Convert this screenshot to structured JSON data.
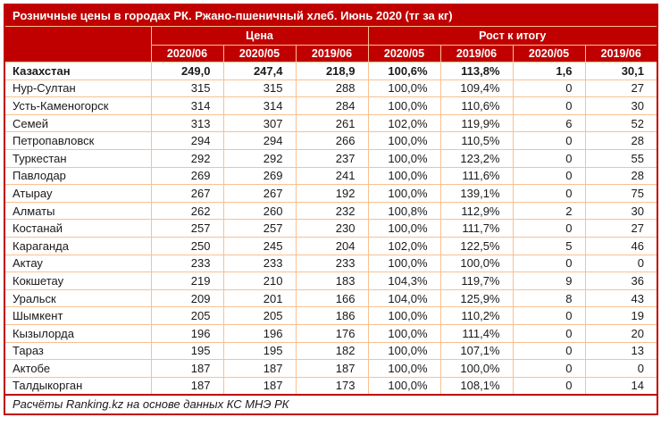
{
  "colors": {
    "header_bg": "#C00000",
    "header_text": "#FFFFFF",
    "grid_border": "#FAC090",
    "body_text": "#1A1A1A",
    "page_bg": "#FFFFFF"
  },
  "chart_data": {
    "type": "table",
    "title": "Розничные цены в городах РК. Ржано-пшеничный хлеб. Июнь 2020 (тг за кг)",
    "column_groups": [
      {
        "label": "Цена",
        "span": 3
      },
      {
        "label": "Рост к итогу",
        "span": 4
      }
    ],
    "columns": [
      "2020/06",
      "2020/05",
      "2019/06",
      "2020/05",
      "2019/06",
      "2020/05",
      "2019/06"
    ],
    "rows": [
      {
        "city": "Казахстан",
        "bold": true,
        "values": [
          "249,0",
          "247,4",
          "218,9",
          "100,6%",
          "113,8%",
          "1,6",
          "30,1"
        ]
      },
      {
        "city": "Нур-Султан",
        "bold": false,
        "values": [
          "315",
          "315",
          "288",
          "100,0%",
          "109,4%",
          "0",
          "27"
        ]
      },
      {
        "city": "Усть-Каменогорск",
        "bold": false,
        "values": [
          "314",
          "314",
          "284",
          "100,0%",
          "110,6%",
          "0",
          "30"
        ]
      },
      {
        "city": "Семей",
        "bold": false,
        "values": [
          "313",
          "307",
          "261",
          "102,0%",
          "119,9%",
          "6",
          "52"
        ]
      },
      {
        "city": "Петропавловск",
        "bold": false,
        "values": [
          "294",
          "294",
          "266",
          "100,0%",
          "110,5%",
          "0",
          "28"
        ]
      },
      {
        "city": "Туркестан",
        "bold": false,
        "values": [
          "292",
          "292",
          "237",
          "100,0%",
          "123,2%",
          "0",
          "55"
        ]
      },
      {
        "city": "Павлодар",
        "bold": false,
        "values": [
          "269",
          "269",
          "241",
          "100,0%",
          "111,6%",
          "0",
          "28"
        ]
      },
      {
        "city": "Атырау",
        "bold": false,
        "values": [
          "267",
          "267",
          "192",
          "100,0%",
          "139,1%",
          "0",
          "75"
        ]
      },
      {
        "city": "Алматы",
        "bold": false,
        "values": [
          "262",
          "260",
          "232",
          "100,8%",
          "112,9%",
          "2",
          "30"
        ]
      },
      {
        "city": "Костанай",
        "bold": false,
        "values": [
          "257",
          "257",
          "230",
          "100,0%",
          "111,7%",
          "0",
          "27"
        ]
      },
      {
        "city": "Караганда",
        "bold": false,
        "values": [
          "250",
          "245",
          "204",
          "102,0%",
          "122,5%",
          "5",
          "46"
        ]
      },
      {
        "city": "Актау",
        "bold": false,
        "values": [
          "233",
          "233",
          "233",
          "100,0%",
          "100,0%",
          "0",
          "0"
        ]
      },
      {
        "city": "Кокшетау",
        "bold": false,
        "values": [
          "219",
          "210",
          "183",
          "104,3%",
          "119,7%",
          "9",
          "36"
        ]
      },
      {
        "city": "Уральск",
        "bold": false,
        "values": [
          "209",
          "201",
          "166",
          "104,0%",
          "125,9%",
          "8",
          "43"
        ]
      },
      {
        "city": "Шымкент",
        "bold": false,
        "values": [
          "205",
          "205",
          "186",
          "100,0%",
          "110,2%",
          "0",
          "19"
        ]
      },
      {
        "city": "Кызылорда",
        "bold": false,
        "values": [
          "196",
          "196",
          "176",
          "100,0%",
          "111,4%",
          "0",
          "20"
        ]
      },
      {
        "city": "Тараз",
        "bold": false,
        "values": [
          "195",
          "195",
          "182",
          "100,0%",
          "107,1%",
          "0",
          "13"
        ]
      },
      {
        "city": "Актобе",
        "bold": false,
        "values": [
          "187",
          "187",
          "187",
          "100,0%",
          "100,0%",
          "0",
          "0"
        ]
      },
      {
        "city": "Талдыкорган",
        "bold": false,
        "values": [
          "187",
          "187",
          "173",
          "100,0%",
          "108,1%",
          "0",
          "14"
        ]
      }
    ],
    "source_note": "Расчёты Ranking.kz на основе данных КС МНЭ РК",
    "layout": {
      "grid": true,
      "header_rows": 2,
      "title_position": "top-left"
    }
  }
}
